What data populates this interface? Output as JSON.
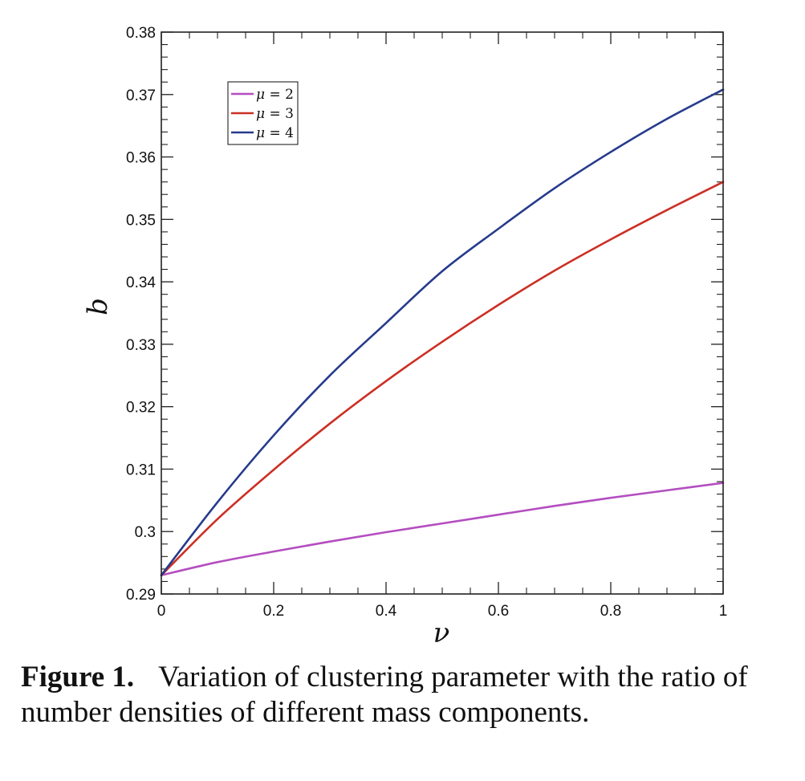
{
  "chart_data": {
    "type": "line",
    "title": "",
    "xlabel": "ν",
    "ylabel": "b",
    "xlim": [
      0,
      1
    ],
    "ylim": [
      0.29,
      0.38
    ],
    "xticks": [
      "0",
      "0.2",
      "0.4",
      "0.6",
      "0.8",
      "1"
    ],
    "yticks": [
      "0.29",
      "0.3",
      "0.31",
      "0.32",
      "0.33",
      "0.34",
      "0.35",
      "0.36",
      "0.37",
      "0.38"
    ],
    "legend_position": "top-left",
    "x": [
      0,
      0.1,
      0.2,
      0.3,
      0.4,
      0.5,
      0.6,
      0.7,
      0.8,
      0.9,
      1.0
    ],
    "series": [
      {
        "name": "μ = 2",
        "mu": "μ",
        "eq": " = 2",
        "color": "#b44ec0",
        "values": [
          0.293,
          0.2951,
          0.2968,
          0.2984,
          0.2999,
          0.3013,
          0.3027,
          0.3041,
          0.3054,
          0.3066,
          0.3078
        ]
      },
      {
        "name": "μ = 3",
        "mu": "μ",
        "eq": " = 3",
        "color": "#cc2f24",
        "values": [
          0.293,
          0.302,
          0.3099,
          0.3173,
          0.3241,
          0.3304,
          0.3363,
          0.3418,
          0.3468,
          0.3515,
          0.356
        ]
      },
      {
        "name": "μ = 4",
        "mu": "μ",
        "eq": " = 4",
        "color": "#263b8c",
        "values": [
          0.293,
          0.3047,
          0.3154,
          0.325,
          0.3334,
          0.3417,
          0.3485,
          0.355,
          0.3608,
          0.3661,
          0.3708
        ]
      }
    ]
  },
  "caption": {
    "label": "Figure 1.",
    "text": "Variation of clustering parameter with the ratio of number densities of different mass components."
  }
}
